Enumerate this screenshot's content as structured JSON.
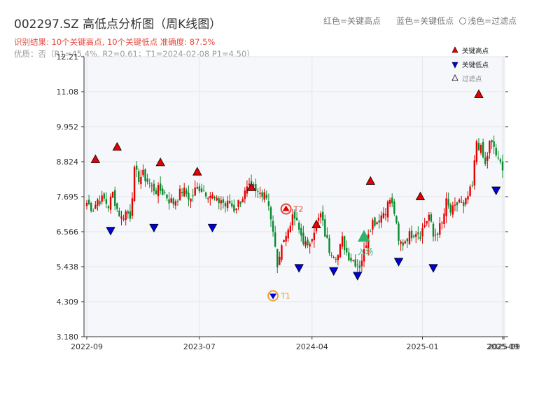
{
  "header": {
    "title": "002297.SZ 高低点分析图（周K线图）",
    "legend_red": "红色=关键高点",
    "legend_blue": "蓝色=关键低点",
    "legend_light": "浅色=过滤点",
    "result": "识别结果: 10个关键高点, 10个关键低点  准确度: 87.5%",
    "meta": "优质：否（R1=45.4%, R2=0.61；T1=2024-02-08 P1=4.50）"
  },
  "chart_data": {
    "type": "candlestick",
    "title": "002297.SZ 高低点分析图（周K线图）",
    "y_ticks": [
      "3.180",
      "4.309",
      "5.438",
      "6.566",
      "7.695",
      "8.824",
      "9.952",
      "11.08",
      "12.21"
    ],
    "x_ticks": [
      "2022-09",
      "2023-07",
      "2024-04",
      "2025-01",
      "2025-09",
      "2025-09"
    ],
    "ylim": [
      3.18,
      12.21
    ],
    "grid": true,
    "colors": {
      "up": "#e60000",
      "down": "#0a8a2e",
      "high_marker": "#e60000",
      "low_marker": "#0000dd",
      "entry": "#2fb36b",
      "t1": "#f0a030",
      "t2": "#e8463a"
    },
    "legend": {
      "placement": "top-right",
      "entries": [
        {
          "label": "关键高点",
          "marker": "triangle-up",
          "color": "#e60000"
        },
        {
          "label": "关键低点",
          "marker": "triangle-down",
          "color": "#0000dd"
        },
        {
          "label": "过滤点",
          "marker": "triangle-up-outline",
          "color": "#000000"
        }
      ]
    },
    "close_path": [
      [
        0,
        7.5
      ],
      [
        3,
        7.3
      ],
      [
        5,
        7.6
      ],
      [
        8,
        7.6
      ],
      [
        10,
        7.4
      ],
      [
        12,
        7.8
      ],
      [
        14,
        7.3
      ],
      [
        16,
        7.0
      ],
      [
        18,
        7.2
      ],
      [
        20,
        7.1
      ],
      [
        22,
        8.5
      ],
      [
        24,
        8.3
      ],
      [
        26,
        8.4
      ],
      [
        28,
        8.2
      ],
      [
        30,
        8.0
      ],
      [
        32,
        7.9
      ],
      [
        34,
        7.9
      ],
      [
        36,
        7.8
      ],
      [
        38,
        7.6
      ],
      [
        40,
        7.5
      ],
      [
        42,
        7.7
      ],
      [
        44,
        7.9
      ],
      [
        46,
        7.8
      ],
      [
        48,
        7.6
      ],
      [
        50,
        7.9
      ],
      [
        52,
        8.0
      ],
      [
        54,
        7.9
      ],
      [
        56,
        7.8
      ],
      [
        58,
        7.7
      ],
      [
        60,
        7.5
      ],
      [
        62,
        7.6
      ],
      [
        64,
        7.4
      ],
      [
        66,
        7.5
      ],
      [
        68,
        7.3
      ],
      [
        70,
        7.5
      ],
      [
        72,
        7.7
      ],
      [
        74,
        7.9
      ],
      [
        76,
        8.0
      ],
      [
        78,
        7.8
      ],
      [
        80,
        7.8
      ],
      [
        82,
        7.9
      ],
      [
        84,
        7.5
      ],
      [
        85,
        7.0
      ],
      [
        86,
        6.5
      ],
      [
        87,
        6.0
      ],
      [
        88,
        5.5
      ],
      [
        89,
        5.6
      ],
      [
        90,
        6.3
      ],
      [
        92,
        6.4
      ],
      [
        94,
        6.9
      ],
      [
        96,
        7.0
      ],
      [
        98,
        6.6
      ],
      [
        100,
        6.3
      ],
      [
        102,
        6.0
      ],
      [
        104,
        6.5
      ],
      [
        106,
        6.8
      ],
      [
        108,
        7.1
      ],
      [
        110,
        6.5
      ],
      [
        112,
        6.0
      ],
      [
        114,
        5.9
      ],
      [
        116,
        5.8
      ],
      [
        118,
        6.3
      ],
      [
        120,
        5.9
      ],
      [
        122,
        5.7
      ],
      [
        124,
        5.6
      ],
      [
        126,
        5.5
      ],
      [
        128,
        5.9
      ],
      [
        130,
        6.6
      ],
      [
        132,
        6.9
      ],
      [
        134,
        6.9
      ],
      [
        136,
        7.1
      ],
      [
        138,
        7.3
      ],
      [
        140,
        7.6
      ],
      [
        142,
        7.2
      ],
      [
        144,
        6.2
      ],
      [
        146,
        6.2
      ],
      [
        148,
        6.4
      ],
      [
        150,
        6.5
      ],
      [
        152,
        6.6
      ],
      [
        154,
        6.5
      ],
      [
        156,
        6.8
      ],
      [
        158,
        7.1
      ],
      [
        160,
        6.4
      ],
      [
        162,
        6.6
      ],
      [
        164,
        6.8
      ],
      [
        166,
        7.5
      ],
      [
        168,
        7.2
      ],
      [
        170,
        7.3
      ],
      [
        172,
        7.6
      ],
      [
        174,
        7.3
      ],
      [
        176,
        7.7
      ],
      [
        178,
        8.0
      ],
      [
        180,
        9.5
      ],
      [
        182,
        9.2
      ],
      [
        184,
        8.7
      ],
      [
        186,
        9.4
      ],
      [
        188,
        9.3
      ],
      [
        190,
        8.8
      ],
      [
        192,
        8.7
      ]
    ],
    "n_candles": 193,
    "key_highs": [
      {
        "i": 4,
        "value": 8.7
      },
      {
        "i": 14,
        "value": 9.1
      },
      {
        "i": 34,
        "value": 8.6
      },
      {
        "i": 51,
        "value": 8.3
      },
      {
        "i": 76,
        "value": 7.8
      },
      {
        "i": 106,
        "value": 6.6
      },
      {
        "i": 131,
        "value": 8.0
      },
      {
        "i": 154,
        "value": 7.5
      },
      {
        "i": 181,
        "value": 10.8
      }
    ],
    "key_lows": [
      {
        "i": 11,
        "value": 6.8
      },
      {
        "i": 31,
        "value": 6.9
      },
      {
        "i": 58,
        "value": 6.9
      },
      {
        "i": 98,
        "value": 5.6
      },
      {
        "i": 114,
        "value": 5.5
      },
      {
        "i": 125,
        "value": 5.35
      },
      {
        "i": 144,
        "value": 5.8
      },
      {
        "i": 160,
        "value": 5.6
      },
      {
        "i": 189,
        "value": 8.1
      }
    ],
    "filtered": [],
    "annotations": [
      {
        "name": "T1",
        "label": "T1",
        "i": 86,
        "value": 4.5,
        "kind": "low"
      },
      {
        "name": "T2",
        "label": "T2",
        "i": 92,
        "value": 7.3,
        "kind": "high"
      },
      {
        "name": "entry",
        "label": "入场",
        "i": 128,
        "value": 6.4,
        "kind": "entry"
      }
    ]
  }
}
